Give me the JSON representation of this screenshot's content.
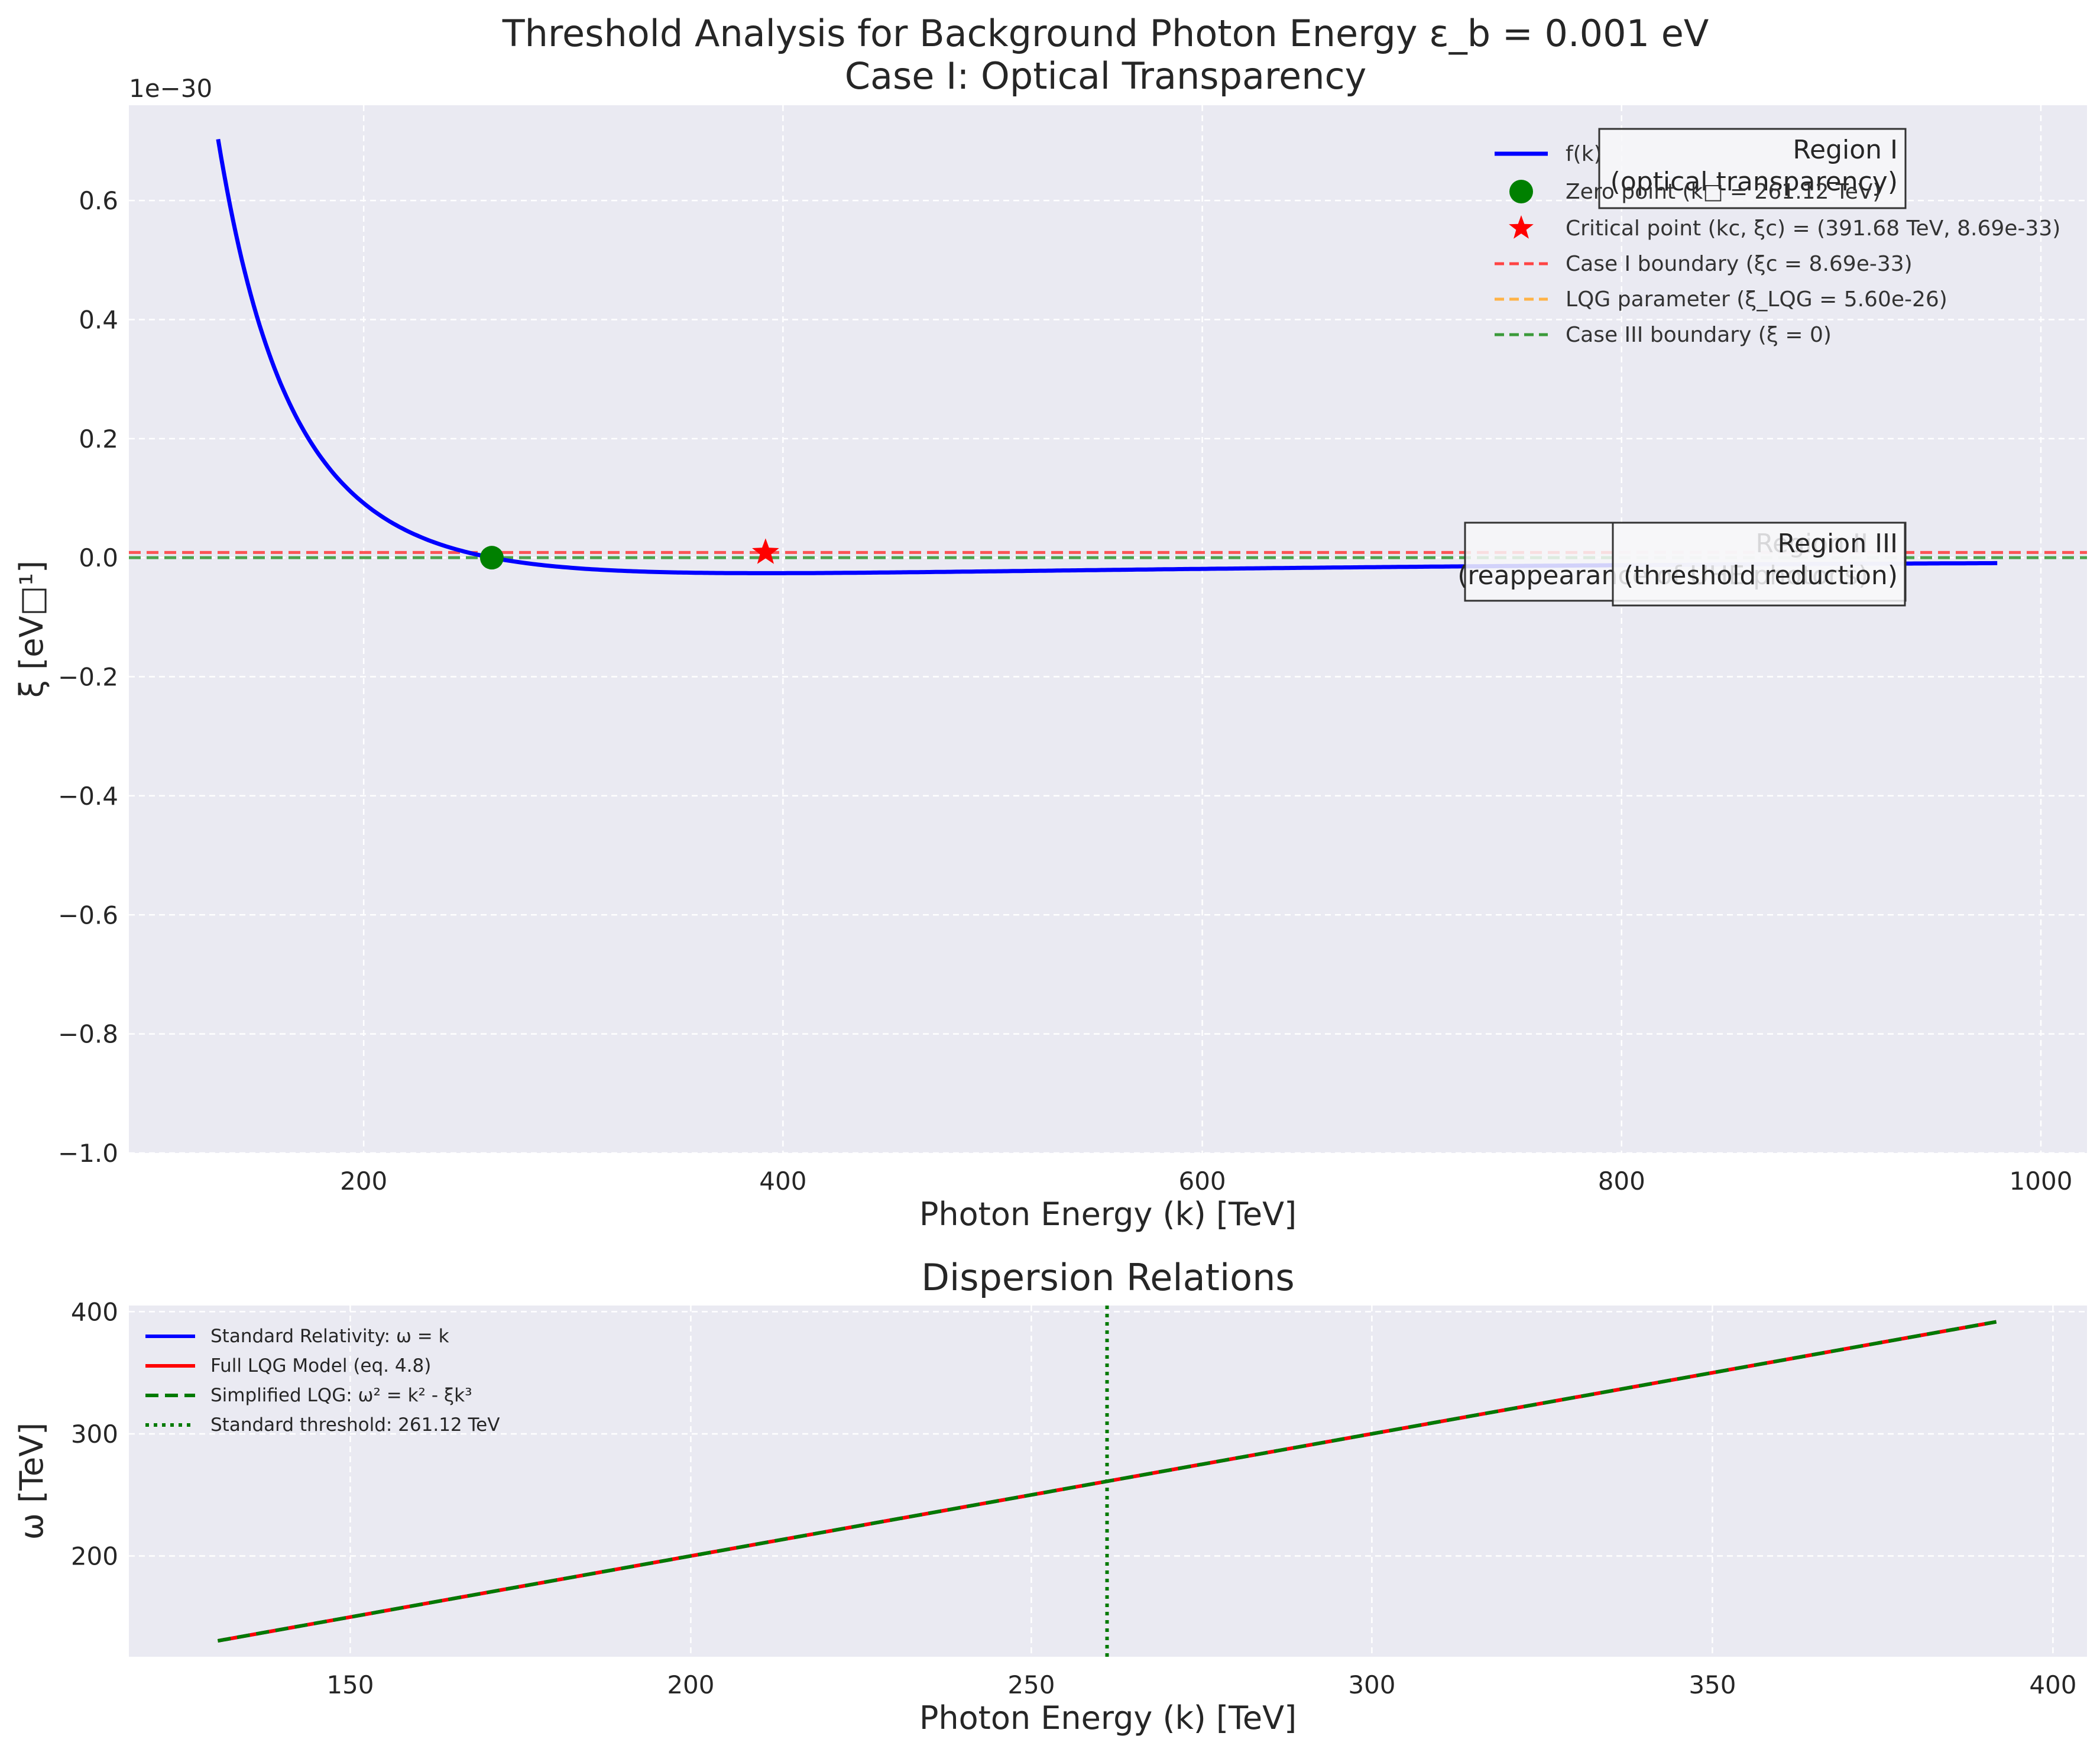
{
  "chart_data": [
    {
      "type": "line",
      "title": "Threshold Analysis for Background Photon Energy ε_b = 0.001 eV",
      "subtitle": "Case I: Optical Transparency",
      "xlabel": "Photon Energy (k) [TeV]",
      "ylabel": "ξ [eV□¹]",
      "y_offset_label": "1e−30",
      "xlim": [
        88,
        1022
      ],
      "ylim": [
        -1.0,
        0.76
      ],
      "y_scale_factor": 1e-30,
      "grid": true,
      "legend_position": "top-right",
      "x_ticks": [
        200,
        400,
        600,
        800,
        1000
      ],
      "y_ticks": [
        -1.0,
        -0.8,
        -0.6,
        -0.4,
        -0.2,
        0.0,
        0.2,
        0.4,
        0.6
      ],
      "x_tick_labels": [
        "200",
        "400",
        "600",
        "800",
        "1000"
      ],
      "y_tick_labels": [
        "−1.0",
        "−0.8",
        "−0.6",
        "−0.4",
        "−0.2",
        "0.0",
        "0.2",
        "0.4",
        "0.6"
      ],
      "series": [
        {
          "name": "f(k)",
          "kind": "line",
          "color": "#0000ff",
          "k_range": [
            130.56,
            979.2
          ],
          "k_zero": 261.12,
          "value_at_min": 0.703
        },
        {
          "name": "Zero point (k□ = 261.12 TeV)",
          "kind": "marker",
          "marker": "circle",
          "color": "#008000",
          "x": [
            261.12
          ],
          "y": [
            0.0
          ]
        },
        {
          "name": "Critical point (kc, ξc) = (391.68 TeV, 8.69e-33)",
          "kind": "marker",
          "marker": "star",
          "color": "#ff0000",
          "x": [
            391.68
          ],
          "y": [
            0.00869
          ]
        },
        {
          "name": "Case I boundary (ξc = 8.69e-33)",
          "kind": "hline",
          "style": "dashed",
          "color": "#ff4444",
          "y": 0.00869
        },
        {
          "name": "LQG parameter (ξ_LQG = 5.60e-26)",
          "kind": "hline",
          "style": "dashed",
          "color": "#ffb347",
          "y": 56000
        },
        {
          "name": "Case III boundary (ξ = 0)",
          "kind": "hline",
          "style": "dashed",
          "color": "#3a9a3a",
          "y": 0.0
        }
      ],
      "annotations": [
        {
          "lines": [
            "Region I",
            "(optical transparency)"
          ],
          "x": 930,
          "y": 0.72
        },
        {
          "lines": [
            "Region II",
            "(reappearance of UHE photons)"
          ],
          "x": 930,
          "y": 0.06
        },
        {
          "lines": [
            "Region III",
            "(threshold reduction)"
          ],
          "x": 930,
          "y": 0.06
        }
      ]
    },
    {
      "type": "line",
      "title": "Dispersion Relations",
      "xlabel": "Photon Energy (k) [TeV]",
      "ylabel": "ω [TeV]",
      "xlim": [
        117.5,
        405
      ],
      "ylim": [
        117.5,
        405
      ],
      "grid": true,
      "legend_position": "top-left",
      "x_ticks": [
        150,
        200,
        250,
        300,
        350,
        400
      ],
      "y_ticks": [
        200,
        300,
        400
      ],
      "x_tick_labels": [
        "150",
        "200",
        "250",
        "300",
        "350",
        "400"
      ],
      "y_tick_labels": [
        "200",
        "300",
        "400"
      ],
      "series": [
        {
          "name": "Standard Relativity: ω = k",
          "style": "solid",
          "color": "#0000ff",
          "x": [
            130.56,
            391.68
          ],
          "y": [
            130.56,
            391.68
          ]
        },
        {
          "name": "Full LQG Model (eq. 4.8)",
          "style": "solid",
          "color": "#ff0000",
          "x": [
            130.56,
            391.68
          ],
          "y": [
            130.56,
            391.68
          ]
        },
        {
          "name": "Simplified LQG: ω² = k² - ξk³",
          "style": "dashed",
          "color": "#007a00",
          "x": [
            130.56,
            391.68
          ],
          "y": [
            130.56,
            391.68
          ]
        },
        {
          "name": "Standard threshold: 261.12 TeV",
          "kind": "vline",
          "style": "dotted",
          "color": "#007a00",
          "x": 261.12
        }
      ]
    }
  ]
}
